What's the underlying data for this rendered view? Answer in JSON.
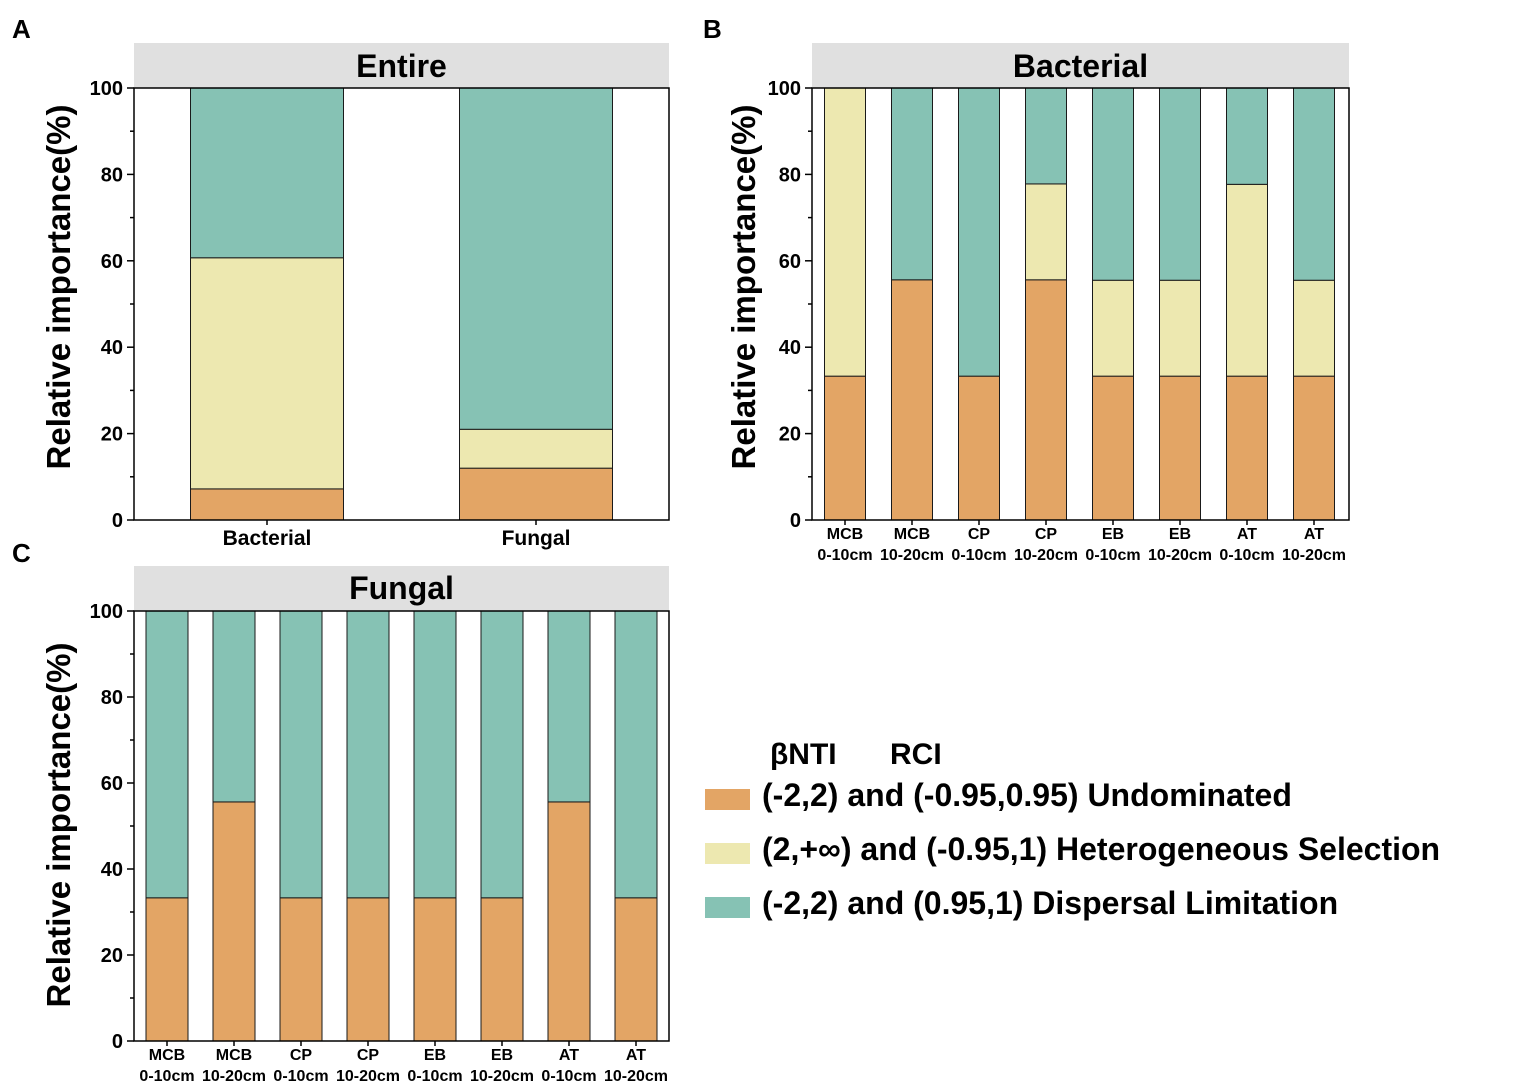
{
  "legend": {
    "title_left": "βNTI",
    "title_right": "RCI",
    "items": [
      {
        "key": "undominated",
        "label": "(-2,2) and (-0.95,0.95) Undominated",
        "color": "#E3A565"
      },
      {
        "key": "heterogeneous",
        "label": "(2,+∞) and (-0.95,1) Heterogeneous Selection",
        "color": "#EDE8B0"
      },
      {
        "key": "dispersal",
        "label": "(-2,2) and (0.95,1) Dispersal Limitation",
        "color": "#86C2B4"
      }
    ]
  },
  "chart_data": [
    {
      "panel_label": "A",
      "type": "bar",
      "stacked": true,
      "title": "Entire",
      "ylabel": "Relative importance(%)",
      "ylim": [
        0,
        100
      ],
      "yticks": [
        "0",
        "20",
        "40",
        "60",
        "80",
        "100"
      ],
      "categories": [
        "Bacterial",
        "Fungal"
      ],
      "series": [
        {
          "name": "Undominated",
          "values": [
            7.2,
            12.0
          ]
        },
        {
          "name": "Heterogeneous Selection",
          "values": [
            53.5,
            9.0
          ]
        },
        {
          "name": "Dispersal Limitation",
          "values": [
            39.3,
            79.0
          ]
        }
      ]
    },
    {
      "panel_label": "B",
      "type": "bar",
      "stacked": true,
      "title": "Bacterial",
      "ylabel": "Relative importance(%)",
      "ylim": [
        0,
        100
      ],
      "yticks": [
        "0",
        "20",
        "40",
        "60",
        "80",
        "100"
      ],
      "categories": [
        {
          "line1": "MCB",
          "line2": "0-10cm"
        },
        {
          "line1": "MCB",
          "line2": "10-20cm"
        },
        {
          "line1": "CP",
          "line2": "0-10cm"
        },
        {
          "line1": "CP",
          "line2": "10-20cm"
        },
        {
          "line1": "EB",
          "line2": "0-10cm"
        },
        {
          "line1": "EB",
          "line2": "10-20cm"
        },
        {
          "line1": "AT",
          "line2": "0-10cm"
        },
        {
          "line1": "AT",
          "line2": "10-20cm"
        }
      ],
      "series": [
        {
          "name": "Undominated",
          "values": [
            33.3,
            55.6,
            33.3,
            55.6,
            33.3,
            33.3,
            33.3,
            33.3
          ]
        },
        {
          "name": "Heterogeneous Selection",
          "values": [
            66.7,
            0,
            0,
            22.2,
            22.2,
            22.2,
            44.4,
            22.2
          ]
        },
        {
          "name": "Dispersal Limitation",
          "values": [
            0,
            44.4,
            66.7,
            22.2,
            44.5,
            44.5,
            22.3,
            44.5
          ]
        }
      ]
    },
    {
      "panel_label": "C",
      "type": "bar",
      "stacked": true,
      "title": "Fungal",
      "ylabel": "Relative importance(%)",
      "ylim": [
        0,
        100
      ],
      "yticks": [
        "0",
        "20",
        "40",
        "60",
        "80",
        "100"
      ],
      "categories": [
        {
          "line1": "MCB",
          "line2": "0-10cm"
        },
        {
          "line1": "MCB",
          "line2": "10-20cm"
        },
        {
          "line1": "CP",
          "line2": "0-10cm"
        },
        {
          "line1": "CP",
          "line2": "10-20cm"
        },
        {
          "line1": "EB",
          "line2": "0-10cm"
        },
        {
          "line1": "EB",
          "line2": "10-20cm"
        },
        {
          "line1": "AT",
          "line2": "0-10cm"
        },
        {
          "line1": "AT",
          "line2": "10-20cm"
        }
      ],
      "series": [
        {
          "name": "Undominated",
          "values": [
            33.3,
            55.6,
            33.3,
            33.3,
            33.3,
            33.3,
            55.6,
            33.3
          ]
        },
        {
          "name": "Heterogeneous Selection",
          "values": [
            0,
            0,
            0,
            0,
            0,
            0,
            0,
            0
          ]
        },
        {
          "name": "Dispersal Limitation",
          "values": [
            66.7,
            44.4,
            66.7,
            66.7,
            66.7,
            66.7,
            44.4,
            66.7
          ]
        }
      ]
    }
  ]
}
